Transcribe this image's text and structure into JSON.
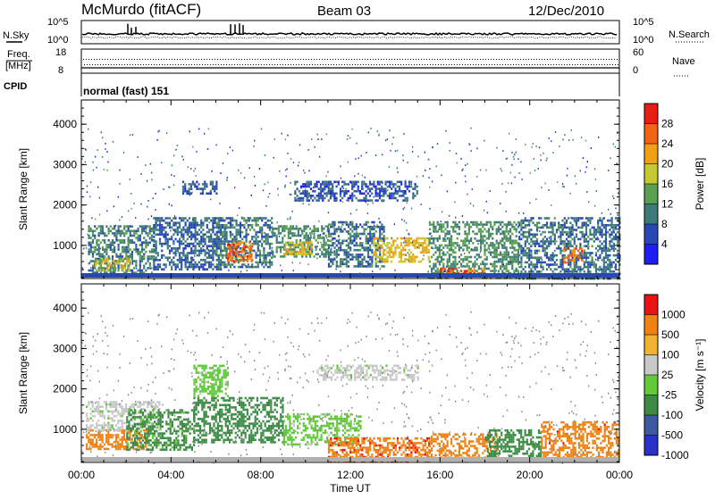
{
  "header": {
    "station": "McMurdo (fitACF)",
    "beam": "Beam 03",
    "date": "12/Dec/2010"
  },
  "top_panels": {
    "nsky_label": "N.Sky",
    "nsearch_label": "N.Search",
    "nsky_ticks": [
      "10^5",
      "10^0"
    ],
    "nsearch_ticks": [
      "10^5",
      "10^0"
    ],
    "freq_label": "Freq.",
    "freq_unit": "[MHz]",
    "freq_ticks": [
      "18",
      "8"
    ],
    "nave_label": "Nave",
    "nave_ticks": [
      "60",
      "0"
    ],
    "cpid_label": "CPID",
    "cpid_value": "normal (fast) 151"
  },
  "chart_data": [
    {
      "type": "heatmap",
      "name": "power",
      "ylabel": "Slant Range [km]",
      "xlabel": "",
      "xlim": [
        "00:00",
        "24:00"
      ],
      "ylim": [
        180,
        4600
      ],
      "yticks": [
        "4000",
        "3000",
        "2000",
        "1000"
      ],
      "xticks": [
        "00:00",
        "04:00",
        "08:00",
        "12:00",
        "16:00",
        "20:00",
        "00:00"
      ],
      "colorbar": {
        "label": "Power [dB]",
        "ticks": [
          "28",
          "24",
          "20",
          "16",
          "12",
          "8",
          "4"
        ],
        "colors": [
          "#1e1ef0",
          "#2a48b4",
          "#3d7a7a",
          "#5aa050",
          "#c8c832",
          "#f0a014",
          "#f06414",
          "#e61e14"
        ]
      },
      "regions": [
        {
          "t0": 0.3,
          "t1": 3.2,
          "r0": 280,
          "r1": 1500,
          "value": 10
        },
        {
          "t0": 0.6,
          "t1": 2.2,
          "r0": 400,
          "r1": 700,
          "value": 18
        },
        {
          "t0": 3.2,
          "t1": 6.2,
          "r0": 400,
          "r1": 1700,
          "value": 8
        },
        {
          "t0": 6.0,
          "t1": 8.5,
          "r0": 450,
          "r1": 1700,
          "value": 10
        },
        {
          "t0": 6.5,
          "t1": 7.6,
          "r0": 600,
          "r1": 1100,
          "value": 26
        },
        {
          "t0": 8.5,
          "t1": 11.0,
          "r0": 700,
          "r1": 1500,
          "value": 12
        },
        {
          "t0": 9.0,
          "t1": 10.3,
          "r0": 800,
          "r1": 1100,
          "value": 20
        },
        {
          "t0": 11.0,
          "t1": 13.5,
          "r0": 500,
          "r1": 1600,
          "value": 9
        },
        {
          "t0": 13.0,
          "t1": 15.5,
          "r0": 600,
          "r1": 1200,
          "value": 20
        },
        {
          "t0": 15.5,
          "t1": 19.5,
          "r0": 200,
          "r1": 1600,
          "value": 12
        },
        {
          "t0": 16.0,
          "t1": 18.0,
          "r0": 250,
          "r1": 450,
          "value": 26
        },
        {
          "t0": 19.5,
          "t1": 24.0,
          "r0": 200,
          "r1": 1700,
          "value": 9
        },
        {
          "t0": 21.5,
          "t1": 22.3,
          "r0": 600,
          "r1": 950,
          "value": 26
        },
        {
          "t0": 4.5,
          "t1": 6.0,
          "r0": 2300,
          "r1": 2600,
          "value": 7
        },
        {
          "t0": 9.5,
          "t1": 15.0,
          "r0": 2100,
          "r1": 2600,
          "value": 7
        }
      ]
    },
    {
      "type": "heatmap",
      "name": "velocity",
      "ylabel": "Slant Range [km]",
      "xlabel": "Time UT",
      "xlim": [
        "00:00",
        "24:00"
      ],
      "ylim": [
        180,
        4600
      ],
      "yticks": [
        "4000",
        "3000",
        "2000",
        "1000"
      ],
      "xticks": [
        "00:00",
        "04:00",
        "08:00",
        "12:00",
        "16:00",
        "20:00",
        "00:00"
      ],
      "colorbar": {
        "label": "Velocity [m s⁻¹]",
        "ticks": [
          "1000",
          "500",
          "100",
          "25",
          "-25",
          "-100",
          "-500",
          "-1000"
        ],
        "colors": [
          "#2832c8",
          "#3c5aa0",
          "#3c8c46",
          "#64c83c",
          "#c8c8c8",
          "#f0b432",
          "#f08214",
          "#e61414"
        ]
      },
      "regions": [
        {
          "t0": 0.2,
          "t1": 3.0,
          "r0": 500,
          "r1": 1000,
          "value": -300
        },
        {
          "t0": 0.2,
          "t1": 3.5,
          "r0": 1000,
          "r1": 1700,
          "value": 10
        },
        {
          "t0": 2.0,
          "t1": 5.0,
          "r0": 500,
          "r1": 1500,
          "value": 150
        },
        {
          "t0": 5.0,
          "t1": 9.0,
          "r0": 700,
          "r1": 1800,
          "value": 250
        },
        {
          "t0": 9.0,
          "t1": 12.5,
          "r0": 600,
          "r1": 1400,
          "value": 60
        },
        {
          "t0": 11.0,
          "t1": 15.5,
          "r0": 200,
          "r1": 800,
          "value": -400
        },
        {
          "t0": 15.5,
          "t1": 18.5,
          "r0": 300,
          "r1": 900,
          "value": -300
        },
        {
          "t0": 18.0,
          "t1": 20.5,
          "r0": 300,
          "r1": 1000,
          "value": 200
        },
        {
          "t0": 20.5,
          "t1": 24.0,
          "r0": 300,
          "r1": 1200,
          "value": -350
        },
        {
          "t0": 5.0,
          "t1": 6.5,
          "r0": 1800,
          "r1": 2600,
          "value": 60
        },
        {
          "t0": 10.5,
          "t1": 15.0,
          "r0": 2200,
          "r1": 2600,
          "value": 10
        }
      ]
    }
  ]
}
